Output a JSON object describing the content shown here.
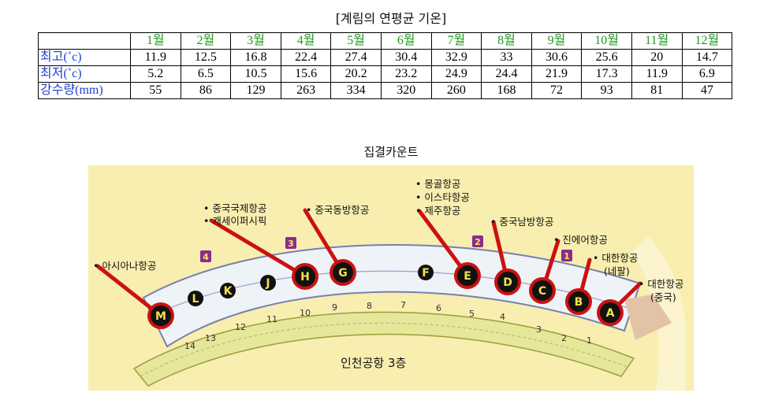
{
  "table_title": "[계림의 연평균 기온]",
  "months": [
    "1월",
    "2월",
    "3월",
    "4월",
    "5월",
    "6월",
    "7월",
    "8월",
    "9월",
    "10월",
    "11월",
    "12월"
  ],
  "rows": [
    {
      "label": "최고(˚c)",
      "values": [
        "11.9",
        "12.5",
        "16.8",
        "22.4",
        "27.4",
        "30.4",
        "32.9",
        "33",
        "30.6",
        "25.6",
        "20",
        "14.7"
      ]
    },
    {
      "label": "최저(˚c)",
      "values": [
        "5.2",
        "6.5",
        "10.5",
        "15.6",
        "20.2",
        "23.2",
        "24.9",
        "24.4",
        "21.9",
        "17.3",
        "11.9",
        "6.9"
      ]
    },
    {
      "label": "강수량(mm)",
      "values": [
        "55",
        "86",
        "129",
        "263",
        "334",
        "320",
        "260",
        "168",
        "72",
        "93",
        "81",
        "47"
      ]
    }
  ],
  "map": {
    "title": "집결카운트",
    "caption": "인천공항 3층",
    "gate_numbers": [
      "1",
      "2",
      "3",
      "4",
      "5",
      "6",
      "7",
      "8",
      "9",
      "10",
      "11",
      "12",
      "13",
      "14"
    ],
    "entrance_numbers": [
      "1",
      "2",
      "3",
      "4"
    ],
    "counters": [
      "A",
      "B",
      "C",
      "D",
      "E",
      "F",
      "G",
      "H",
      "J",
      "K",
      "L",
      "M"
    ],
    "airlines": {
      "asiana": "• 아시아나항공",
      "china_intl": "• 중국국제항공",
      "cathay": "• 캐세이퍼시픽",
      "china_eastern": "• 중국동방항공",
      "mongolian": "• 몽골항공",
      "eastar": "• 이스타항공",
      "jeju": "• 제주항공",
      "china_southern": "• 중국남방항공",
      "jinair": "• 진에어항공",
      "korean_nepal_1": "• 대한항공",
      "korean_nepal_2": "(네팔)",
      "korean_china_1": "• 대한항공",
      "korean_china_2": "(중국)"
    }
  },
  "colors": {
    "month": "#1f9a1f",
    "row_label": "#1d3fcf",
    "map_bg": "#f7eeb0",
    "floor": "#eef3f8",
    "counter_dark": "#111111",
    "counter_red": "#cc1111",
    "pointer": "#cc1111",
    "badge": "#8a2c8f",
    "gate_band": "#e6e79a"
  }
}
